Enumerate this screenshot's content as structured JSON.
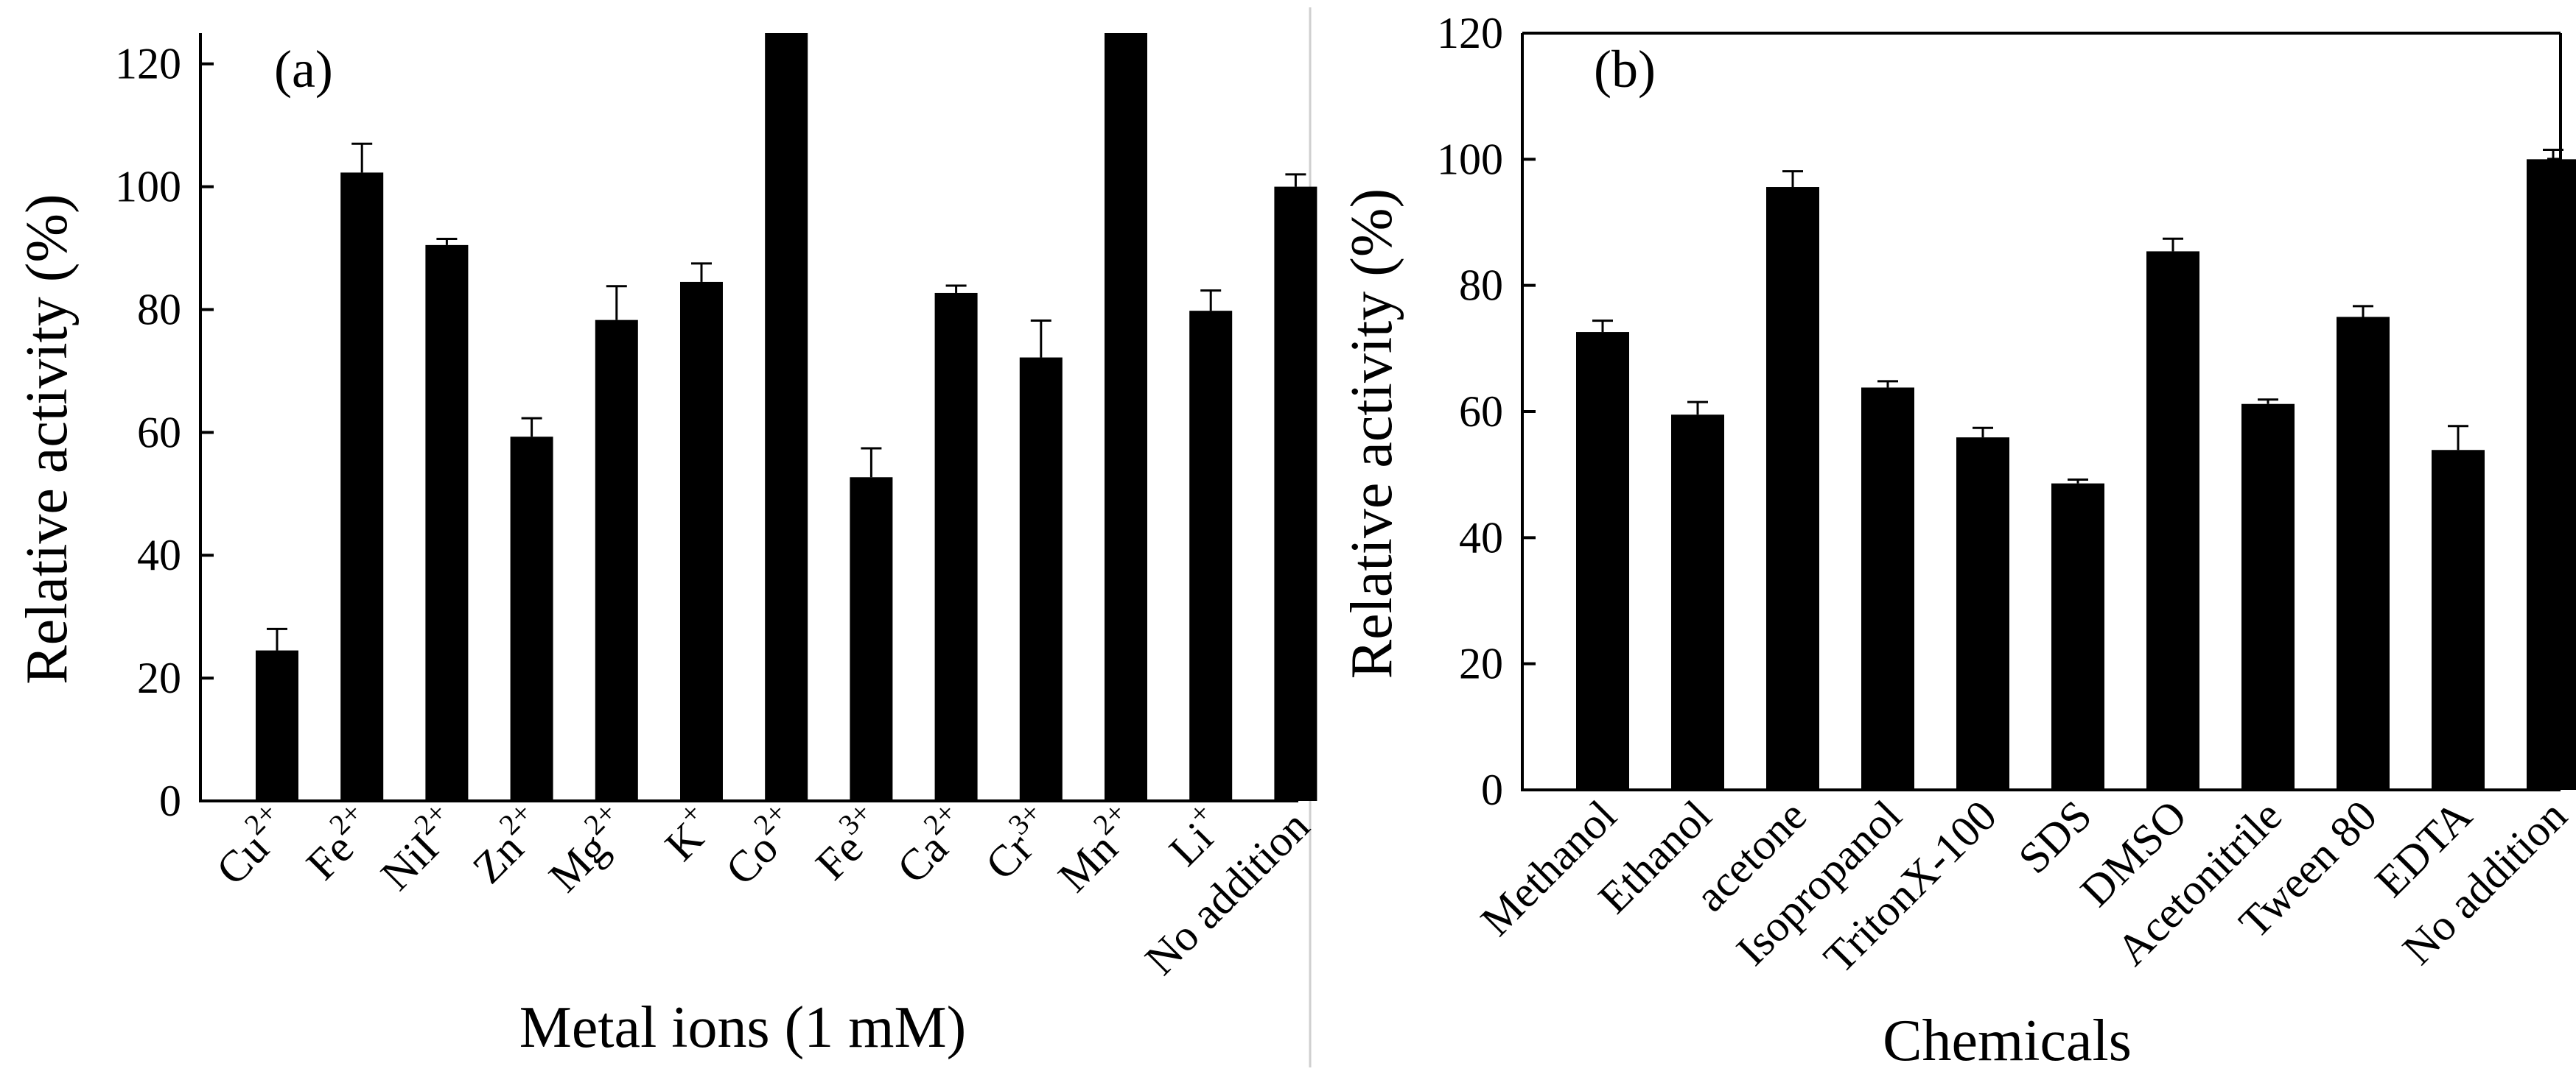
{
  "chart_data": [
    {
      "type": "bar",
      "panel_label": "(a)",
      "title": "",
      "xlabel": "Metal ions (1 mM)",
      "ylabel": "Relative activity (%)",
      "ylim": [
        0,
        125
      ],
      "yticks": [
        0,
        20,
        40,
        60,
        80,
        100,
        120
      ],
      "grid": false,
      "categories": [
        {
          "base": "Cu",
          "charge": "2+"
        },
        {
          "base": "Fe",
          "charge": "2+"
        },
        {
          "base": "NiI",
          "charge": "2+"
        },
        {
          "base": "Zn",
          "charge": "2+"
        },
        {
          "base": "Mg",
          "charge": "2+"
        },
        {
          "base": "K",
          "charge": "+"
        },
        {
          "base": "Co",
          "charge": "2+"
        },
        {
          "base": "Fe",
          "charge": "3+"
        },
        {
          "base": "Ca",
          "charge": "2+"
        },
        {
          "base": "Cr",
          "charge": "3+"
        },
        {
          "base": "Mn",
          "charge": "2+"
        },
        {
          "base": "Li",
          "charge": "+"
        },
        {
          "base": "No addition",
          "charge": ""
        }
      ],
      "values": [
        24.5,
        102.3,
        90.5,
        59.3,
        78.3,
        84.5,
        125,
        52.7,
        82.7,
        72.2,
        125,
        79.8,
        100
      ],
      "errors": [
        3.5,
        4.7,
        1.0,
        3.0,
        5.5,
        3.0,
        0,
        4.7,
        1.2,
        6.0,
        0,
        3.3,
        2.0
      ]
    },
    {
      "type": "bar",
      "panel_label": "(b)",
      "title": "",
      "xlabel": "Chemicals",
      "ylabel": "Relative activity (%)",
      "ylim": [
        0,
        120
      ],
      "yticks": [
        0,
        20,
        40,
        60,
        80,
        100,
        120
      ],
      "grid": false,
      "categories": [
        {
          "base": "Methanol",
          "charge": ""
        },
        {
          "base": "Ethanol",
          "charge": ""
        },
        {
          "base": "acetone",
          "charge": ""
        },
        {
          "base": "Isopropanol",
          "charge": ""
        },
        {
          "base": "TritonX-100",
          "charge": ""
        },
        {
          "base": "SDS",
          "charge": ""
        },
        {
          "base": "DMSO",
          "charge": ""
        },
        {
          "base": "Acetonitrile",
          "charge": ""
        },
        {
          "base": "Tween 80",
          "charge": ""
        },
        {
          "base": "EDTA",
          "charge": ""
        },
        {
          "base": "No addition",
          "charge": ""
        }
      ],
      "values": [
        72.6,
        59.5,
        95.6,
        63.8,
        55.9,
        48.6,
        85.4,
        61.2,
        75.0,
        53.9,
        100
      ],
      "errors": [
        1.8,
        2.0,
        2.5,
        1.0,
        1.5,
        0.6,
        2.0,
        0.7,
        1.7,
        3.8,
        1.5
      ]
    }
  ]
}
